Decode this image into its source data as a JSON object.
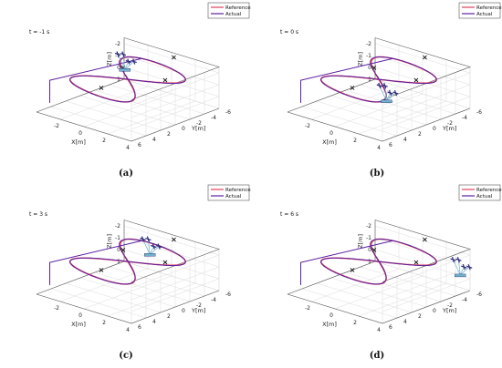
{
  "figure": {
    "colors": {
      "reference": "#e0405a",
      "actual": "#5a1fa0",
      "marker": "#111111",
      "uav": "#2b2b7a",
      "rope": "#6fb3c9"
    },
    "legend_entries": [
      "Reference",
      "Actual"
    ]
  },
  "chart_data": [
    {
      "type": "line",
      "panel_label": "(a)",
      "time_label": "t = -1 s",
      "xlabel": "X[m]",
      "ylabel": "Y[m]",
      "zlabel": "Z[m]",
      "xticks": [
        "-2",
        "0",
        "2",
        "4"
      ],
      "yticks": [
        "6",
        "4",
        "2",
        "0",
        "-2",
        "-4",
        "-6"
      ],
      "zticks": [
        "-2",
        "-1",
        "0",
        "1"
      ],
      "xlim": [
        -4,
        4
      ],
      "ylim": [
        -6,
        6
      ],
      "zlim": [
        -2.5,
        1
      ],
      "series": [
        {
          "name": "Reference",
          "description": "figure-eight trajectory"
        },
        {
          "name": "Actual",
          "description": "figure-eight trajectory"
        }
      ]
    },
    {
      "type": "line",
      "panel_label": "(b)",
      "time_label": "t = 0 s",
      "xlabel": "X[m]",
      "ylabel": "Y[m]",
      "zlabel": "Z[m]",
      "xticks": [
        "-2",
        "0",
        "2",
        "4"
      ],
      "yticks": [
        "6",
        "4",
        "2",
        "0",
        "-2",
        "-4",
        "-6"
      ],
      "zticks": [
        "-2",
        "-1",
        "0",
        "1"
      ],
      "xlim": [
        -4,
        4
      ],
      "ylim": [
        -6,
        6
      ],
      "zlim": [
        -2.5,
        1
      ],
      "series": [
        {
          "name": "Reference",
          "description": "figure-eight trajectory"
        },
        {
          "name": "Actual",
          "description": "figure-eight trajectory"
        }
      ]
    },
    {
      "type": "line",
      "panel_label": "(c)",
      "time_label": "t = 3 s",
      "xlabel": "X[m]",
      "ylabel": "Y[m]",
      "zlabel": "Z[m]",
      "xticks": [
        "-2",
        "0",
        "2",
        "4"
      ],
      "yticks": [
        "6",
        "4",
        "2",
        "0",
        "-2",
        "-4",
        "-6"
      ],
      "zticks": [
        "-2",
        "-1",
        "0",
        "1"
      ],
      "xlim": [
        -4,
        4
      ],
      "ylim": [
        -6,
        6
      ],
      "zlim": [
        -2.5,
        1
      ],
      "series": [
        {
          "name": "Reference",
          "description": "figure-eight trajectory"
        },
        {
          "name": "Actual",
          "description": "figure-eight trajectory"
        }
      ]
    },
    {
      "type": "line",
      "panel_label": "(d)",
      "time_label": "t = 6 s",
      "xlabel": "X[m]",
      "ylabel": "Y[m]",
      "zlabel": "Z[m]",
      "xticks": [
        "-2",
        "0",
        "2",
        "4"
      ],
      "yticks": [
        "6",
        "4",
        "2",
        "0",
        "-2",
        "-4",
        "-6"
      ],
      "zticks": [
        "-2",
        "-1",
        "0",
        "1"
      ],
      "xlim": [
        -4,
        4
      ],
      "ylim": [
        -6,
        6
      ],
      "zlim": [
        -2.5,
        1
      ],
      "series": [
        {
          "name": "Reference",
          "description": "figure-eight trajectory"
        },
        {
          "name": "Actual",
          "description": "figure-eight trajectory"
        }
      ]
    }
  ]
}
